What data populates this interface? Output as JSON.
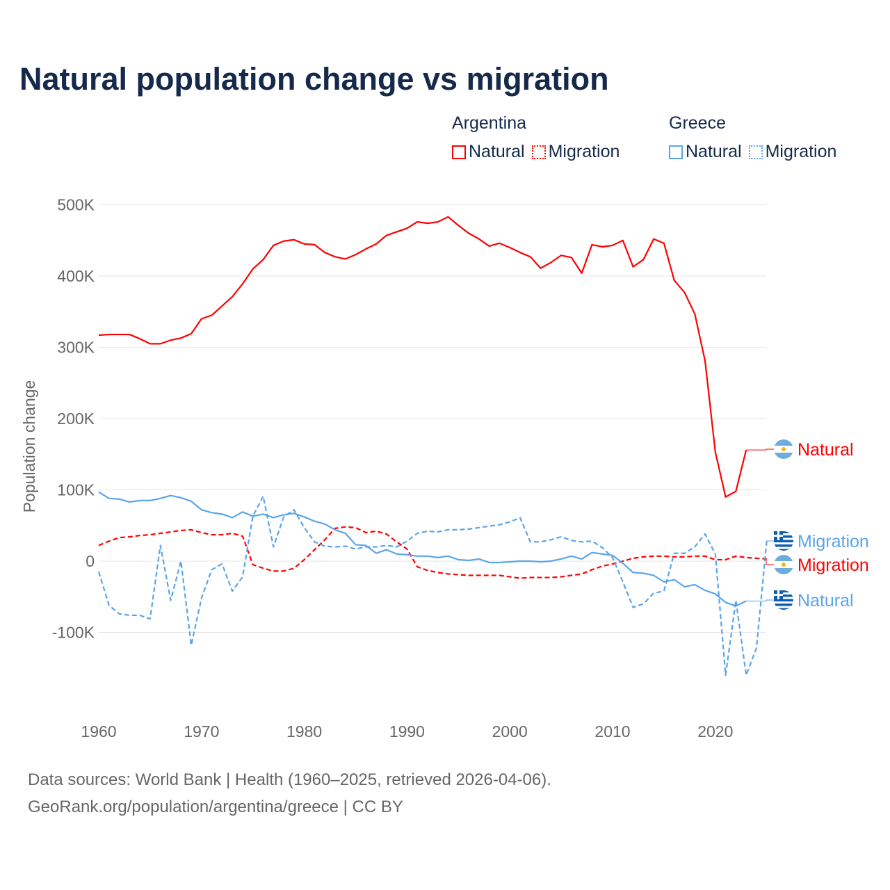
{
  "title": "Natural population change vs migration",
  "legend": [
    {
      "country": "Argentina",
      "items": [
        {
          "label": "Natural",
          "color": "#ff0000",
          "style": "solid"
        },
        {
          "label": "Migration",
          "color": "#ff0000",
          "style": "dotted"
        }
      ]
    },
    {
      "country": "Greece",
      "items": [
        {
          "label": "Natural",
          "color": "#5aa5ea",
          "style": "solid"
        },
        {
          "label": "Migration",
          "color": "#5aa5ea",
          "style": "dotted"
        }
      ]
    }
  ],
  "footer": {
    "line1": "Data sources: World Bank | Health (1960–2025, retrieved 2026-04-06).",
    "line2": "GeoRank.org/population/argentina/greece | CC BY"
  },
  "chart_data": {
    "type": "line",
    "ylabel": "Population change",
    "ylim": [
      -200000,
      520000
    ],
    "xlim": [
      1960,
      2025
    ],
    "yticks": [
      {
        "v": -100000,
        "label": "-100K"
      },
      {
        "v": 0,
        "label": "0"
      },
      {
        "v": 100000,
        "label": "100K"
      },
      {
        "v": 200000,
        "label": "200K"
      },
      {
        "v": 300000,
        "label": "300K"
      },
      {
        "v": 400000,
        "label": "400K"
      },
      {
        "v": 500000,
        "label": "500K"
      }
    ],
    "xticks": [
      {
        "v": 1960,
        "label": "1960"
      },
      {
        "v": 1970,
        "label": "1970"
      },
      {
        "v": 1980,
        "label": "1980"
      },
      {
        "v": 1990,
        "label": "1990"
      },
      {
        "v": 2000,
        "label": "2000"
      },
      {
        "v": 2010,
        "label": "2010"
      },
      {
        "v": 2020,
        "label": "2020"
      }
    ],
    "grid": true,
    "series": [
      {
        "name": "Argentina Natural",
        "end_label": "Natural",
        "flag": "argentina",
        "color": "#ff0000",
        "dash": false,
        "start": 1960,
        "values_k": [
          317,
          318,
          318,
          318,
          312,
          305,
          305,
          310,
          313,
          319,
          340,
          345,
          358,
          371,
          389,
          410,
          423,
          443,
          449,
          451,
          445,
          444,
          433,
          427,
          424,
          430,
          438,
          445,
          457,
          462,
          467,
          476,
          474,
          476,
          483,
          471,
          460,
          452,
          442,
          446,
          440,
          433,
          427,
          411,
          419,
          429,
          426,
          404,
          444,
          441,
          443,
          450,
          413,
          423,
          452,
          446,
          394,
          377,
          347,
          281,
          153,
          90,
          98,
          156
        ]
      },
      {
        "name": "Argentina Migration",
        "end_label": "Migration",
        "flag": "argentina",
        "color": "#ff0000",
        "dash": true,
        "start": 1960,
        "values_k": [
          22,
          28,
          33,
          34,
          36,
          37,
          39,
          41,
          43,
          44,
          40,
          37,
          37,
          39,
          35,
          -5,
          -10,
          -14,
          -14,
          -10,
          2,
          16,
          30,
          46,
          48,
          47,
          40,
          42,
          38,
          27,
          17,
          -8,
          -13,
          -16,
          -18,
          -19,
          -20,
          -20,
          -20,
          -20,
          -22,
          -24,
          -23,
          -23,
          -23,
          -22,
          -20,
          -18,
          -12,
          -7,
          -4,
          0,
          4,
          6,
          7,
          7,
          6,
          6,
          7,
          7,
          2,
          2,
          7,
          5,
          4,
          3
        ]
      },
      {
        "name": "Greece Natural",
        "end_label": "Natural",
        "flag": "greece",
        "color": "#5aa5ea",
        "dash": false,
        "start": 1960,
        "values_k": [
          97,
          88,
          87,
          83,
          85,
          85,
          88,
          92,
          89,
          84,
          72,
          68,
          66,
          61,
          69,
          63,
          66,
          61,
          65,
          67,
          62,
          56,
          52,
          44,
          39,
          23,
          22,
          11,
          16,
          10,
          9,
          7,
          7,
          5,
          7,
          2,
          1,
          3,
          -2,
          -2,
          -1,
          0,
          0,
          -1,
          0,
          3,
          7,
          3,
          12,
          10,
          8,
          -3,
          -16,
          -17,
          -20,
          -29,
          -26,
          -36,
          -33,
          -41,
          -46,
          -58,
          -63,
          -56
        ]
      },
      {
        "name": "Greece Migration",
        "end_label": "Migration",
        "flag": "greece",
        "color": "#5aa5ea",
        "dash": true,
        "start": 1960,
        "values_k": [
          -15,
          -62,
          -74,
          -76,
          -76,
          -81,
          22,
          -55,
          0,
          -118,
          -52,
          -12,
          -4,
          -42,
          -22,
          63,
          91,
          20,
          62,
          72,
          47,
          27,
          21,
          20,
          21,
          17,
          20,
          20,
          22,
          20,
          28,
          39,
          42,
          41,
          44,
          44,
          45,
          47,
          49,
          51,
          55,
          61,
          27,
          27,
          30,
          34,
          29,
          27,
          28,
          19,
          5,
          -29,
          -65,
          -60,
          -45,
          -42,
          11,
          11,
          20,
          38,
          10,
          -160,
          -55,
          -160,
          -122,
          28
        ]
      }
    ]
  }
}
